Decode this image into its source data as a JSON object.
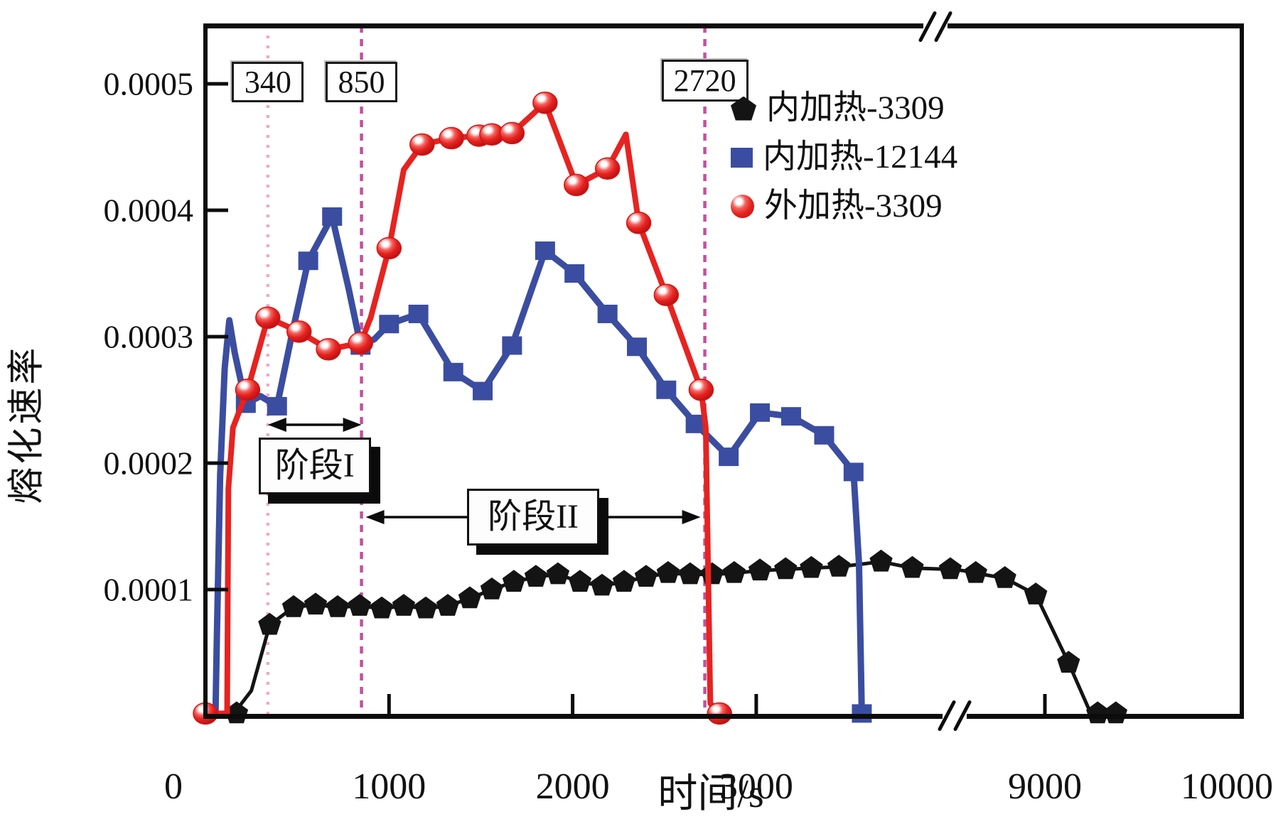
{
  "axes": {
    "y_label": "熔化速率",
    "x_label": "时间/s",
    "y_ticks": [
      {
        "label": "0.0005",
        "value": 0.0005
      },
      {
        "label": "0.0004",
        "value": 0.0004
      },
      {
        "label": "0.0003",
        "value": 0.0003
      },
      {
        "label": "0.0002",
        "value": 0.0002
      },
      {
        "label": "0.0001",
        "value": 0.0001
      }
    ],
    "x_ticks": [
      {
        "label": "0",
        "value": 0,
        "tickmark": false
      },
      {
        "label": "1000",
        "value": 1000,
        "tickmark": true
      },
      {
        "label": "2000",
        "value": 2000,
        "tickmark": true
      },
      {
        "label": "3000",
        "value": 3000,
        "tickmark": true
      },
      {
        "label": "9000",
        "value": 9000,
        "tickmark": true
      },
      {
        "label": "10000",
        "value": 10000,
        "tickmark": false
      }
    ],
    "x_break": {
      "left_segment_max": 4040,
      "right_segment_min": 8540
    },
    "ylim": [
      0,
      0.00055
    ],
    "grid": false
  },
  "legend": {
    "position": "upper-right-inside",
    "items": [
      {
        "label": "内加热-3309",
        "marker": "pentagon",
        "color": "#141414"
      },
      {
        "label": "内加热-12144",
        "marker": "square",
        "color": "#3b4da0"
      },
      {
        "label": "外加热-3309",
        "marker": "circle",
        "color": "#e62320"
      }
    ]
  },
  "annotations": {
    "vlines": [
      {
        "label": "340",
        "t": 340,
        "color": "#f2a8c4",
        "style": "dotted"
      },
      {
        "label": "850",
        "t": 850,
        "color": "#c4509e",
        "style": "dashed"
      },
      {
        "label": "2720",
        "t": 2720,
        "color": "#c4509e",
        "style": "dashed"
      }
    ],
    "stages": [
      {
        "label": "阶段I",
        "t_from": 340,
        "t_to": 850,
        "arrow": "double-headed"
      },
      {
        "label": "阶段II",
        "t_from": 850,
        "t_to": 2720,
        "arrow": "out-from-box-both-sides"
      }
    ]
  },
  "chart_data": {
    "type": "line",
    "xlabel": "时间/s",
    "ylabel": "熔化速率",
    "series": [
      {
        "name": "内加热-3309",
        "color": "#141414",
        "marker": "pentagon",
        "line_points": [
          [
            155,
            2e-06
          ],
          [
            250,
            2e-05
          ],
          [
            350,
            7.2e-05
          ],
          [
            480,
            8.6e-05
          ],
          [
            600,
            8.8e-05
          ],
          [
            720,
            8.6e-05
          ],
          [
            840,
            8.7e-05
          ],
          [
            960,
            8.5e-05
          ],
          [
            1080,
            8.7e-05
          ],
          [
            1200,
            8.5e-05
          ],
          [
            1320,
            8.7e-05
          ],
          [
            1440,
            9.3e-05
          ],
          [
            1560,
            0.0001
          ],
          [
            1680,
            0.000106
          ],
          [
            1800,
            0.00011
          ],
          [
            1920,
            0.000112
          ],
          [
            2040,
            0.000106
          ],
          [
            2160,
            0.000103
          ],
          [
            2280,
            0.000106
          ],
          [
            2400,
            0.00011
          ],
          [
            2520,
            0.000113
          ],
          [
            2640,
            0.000112
          ],
          [
            2760,
            0.000112
          ],
          [
            2880,
            0.000113
          ],
          [
            3020,
            0.000115
          ],
          [
            3160,
            0.000116
          ],
          [
            3300,
            0.000117
          ],
          [
            3450,
            0.000118
          ],
          [
            3680,
            0.000122
          ],
          [
            3850,
            0.000117
          ],
          [
            4057,
            0.000116
          ],
          [
            8550,
            0.000115
          ],
          [
            8620,
            0.000113
          ],
          [
            8780,
            0.000109
          ],
          [
            8950,
            9.6e-05
          ],
          [
            9130,
            4.2e-05
          ],
          [
            9240,
            6e-06
          ],
          [
            9290,
            2e-06
          ],
          [
            9390,
            2e-06
          ]
        ],
        "marker_points": [
          [
            170,
            2e-06
          ],
          [
            350,
            7.2e-05
          ],
          [
            480,
            8.6e-05
          ],
          [
            600,
            8.8e-05
          ],
          [
            720,
            8.6e-05
          ],
          [
            840,
            8.7e-05
          ],
          [
            960,
            8.5e-05
          ],
          [
            1080,
            8.7e-05
          ],
          [
            1200,
            8.5e-05
          ],
          [
            1320,
            8.7e-05
          ],
          [
            1440,
            9.3e-05
          ],
          [
            1560,
            0.0001
          ],
          [
            1680,
            0.000106
          ],
          [
            1800,
            0.00011
          ],
          [
            1920,
            0.000112
          ],
          [
            2040,
            0.000106
          ],
          [
            2160,
            0.000103
          ],
          [
            2280,
            0.000106
          ],
          [
            2400,
            0.00011
          ],
          [
            2520,
            0.000113
          ],
          [
            2640,
            0.000112
          ],
          [
            2760,
            0.000112
          ],
          [
            2880,
            0.000113
          ],
          [
            3020,
            0.000115
          ],
          [
            3160,
            0.000116
          ],
          [
            3300,
            0.000117
          ],
          [
            3450,
            0.000118
          ],
          [
            3680,
            0.000122
          ],
          [
            3850,
            0.000117
          ],
          [
            4057,
            0.000116
          ],
          [
            8620,
            0.000113
          ],
          [
            8780,
            0.000109
          ],
          [
            8950,
            9.6e-05
          ],
          [
            9130,
            4.2e-05
          ],
          [
            9290,
            2e-06
          ],
          [
            9390,
            2e-06
          ]
        ]
      },
      {
        "name": "内加热-12144",
        "color": "#3b4da0",
        "marker": "square",
        "line_points": [
          [
            55,
            2e-06
          ],
          [
            62,
            6e-05
          ],
          [
            80,
            0.00019
          ],
          [
            105,
            0.000275
          ],
          [
            130,
            0.000313
          ],
          [
            160,
            0.000287
          ],
          [
            220,
            0.000247
          ],
          [
            300,
            0.000253
          ],
          [
            390,
            0.000245
          ],
          [
            470,
            0.000301
          ],
          [
            560,
            0.00036
          ],
          [
            690,
            0.000395
          ],
          [
            780,
            0.000338
          ],
          [
            845,
            0.000293
          ],
          [
            920,
            0.000298
          ],
          [
            1000,
            0.00031
          ],
          [
            1160,
            0.000318
          ],
          [
            1350,
            0.000272
          ],
          [
            1510,
            0.000257
          ],
          [
            1670,
            0.000293
          ],
          [
            1850,
            0.000368
          ],
          [
            2010,
            0.00035
          ],
          [
            2190,
            0.000318
          ],
          [
            2350,
            0.000292
          ],
          [
            2510,
            0.000258
          ],
          [
            2670,
            0.000231
          ],
          [
            2850,
            0.000205
          ],
          [
            3020,
            0.00024
          ],
          [
            3190,
            0.000237
          ],
          [
            3370,
            0.000222
          ],
          [
            3530,
            0.000193
          ],
          [
            3560,
            0.00012
          ],
          [
            3575,
            2e-06
          ]
        ],
        "marker_points": [
          [
            220,
            0.000247
          ],
          [
            390,
            0.000245
          ],
          [
            560,
            0.00036
          ],
          [
            690,
            0.000395
          ],
          [
            845,
            0.000293
          ],
          [
            1000,
            0.00031
          ],
          [
            1160,
            0.000318
          ],
          [
            1350,
            0.000272
          ],
          [
            1510,
            0.000257
          ],
          [
            1670,
            0.000293
          ],
          [
            1850,
            0.000368
          ],
          [
            2010,
            0.00035
          ],
          [
            2190,
            0.000318
          ],
          [
            2350,
            0.000292
          ],
          [
            2510,
            0.000258
          ],
          [
            2670,
            0.000231
          ],
          [
            2850,
            0.000205
          ],
          [
            3020,
            0.00024
          ],
          [
            3190,
            0.000237
          ],
          [
            3370,
            0.000222
          ],
          [
            3530,
            0.000193
          ],
          [
            3575,
            2e-06
          ]
        ]
      },
      {
        "name": "外加热-3309",
        "color": "#e62320",
        "marker": "circle",
        "line_points": [
          [
            0,
            2e-06
          ],
          [
            118,
            2e-06
          ],
          [
            125,
            0.00018
          ],
          [
            150,
            0.000228
          ],
          [
            230,
            0.000258
          ],
          [
            340,
            0.000315
          ],
          [
            510,
            0.000304
          ],
          [
            670,
            0.00029
          ],
          [
            845,
            0.000295
          ],
          [
            900,
            0.000315
          ],
          [
            1000,
            0.00037
          ],
          [
            1080,
            0.000432
          ],
          [
            1180,
            0.000452
          ],
          [
            1340,
            0.000457
          ],
          [
            1490,
            0.000459
          ],
          [
            1560,
            0.00046
          ],
          [
            1670,
            0.000461
          ],
          [
            1850,
            0.000485
          ],
          [
            2020,
            0.00042
          ],
          [
            2190,
            0.000433
          ],
          [
            2290,
            0.00046
          ],
          [
            2360,
            0.00039
          ],
          [
            2510,
            0.000333
          ],
          [
            2700,
            0.000258
          ],
          [
            2725,
            0.000228
          ],
          [
            2750,
            1e-05
          ],
          [
            2800,
            2e-06
          ]
        ],
        "marker_points": [
          [
            0,
            2e-06
          ],
          [
            230,
            0.000258
          ],
          [
            340,
            0.000315
          ],
          [
            510,
            0.000304
          ],
          [
            670,
            0.00029
          ],
          [
            845,
            0.000295
          ],
          [
            1000,
            0.00037
          ],
          [
            1180,
            0.000452
          ],
          [
            1340,
            0.000457
          ],
          [
            1490,
            0.000459
          ],
          [
            1560,
            0.00046
          ],
          [
            1670,
            0.000461
          ],
          [
            1850,
            0.000485
          ],
          [
            2020,
            0.00042
          ],
          [
            2190,
            0.000433
          ],
          [
            2360,
            0.00039
          ],
          [
            2510,
            0.000333
          ],
          [
            2700,
            0.000258
          ],
          [
            2800,
            2e-06
          ]
        ]
      }
    ]
  }
}
